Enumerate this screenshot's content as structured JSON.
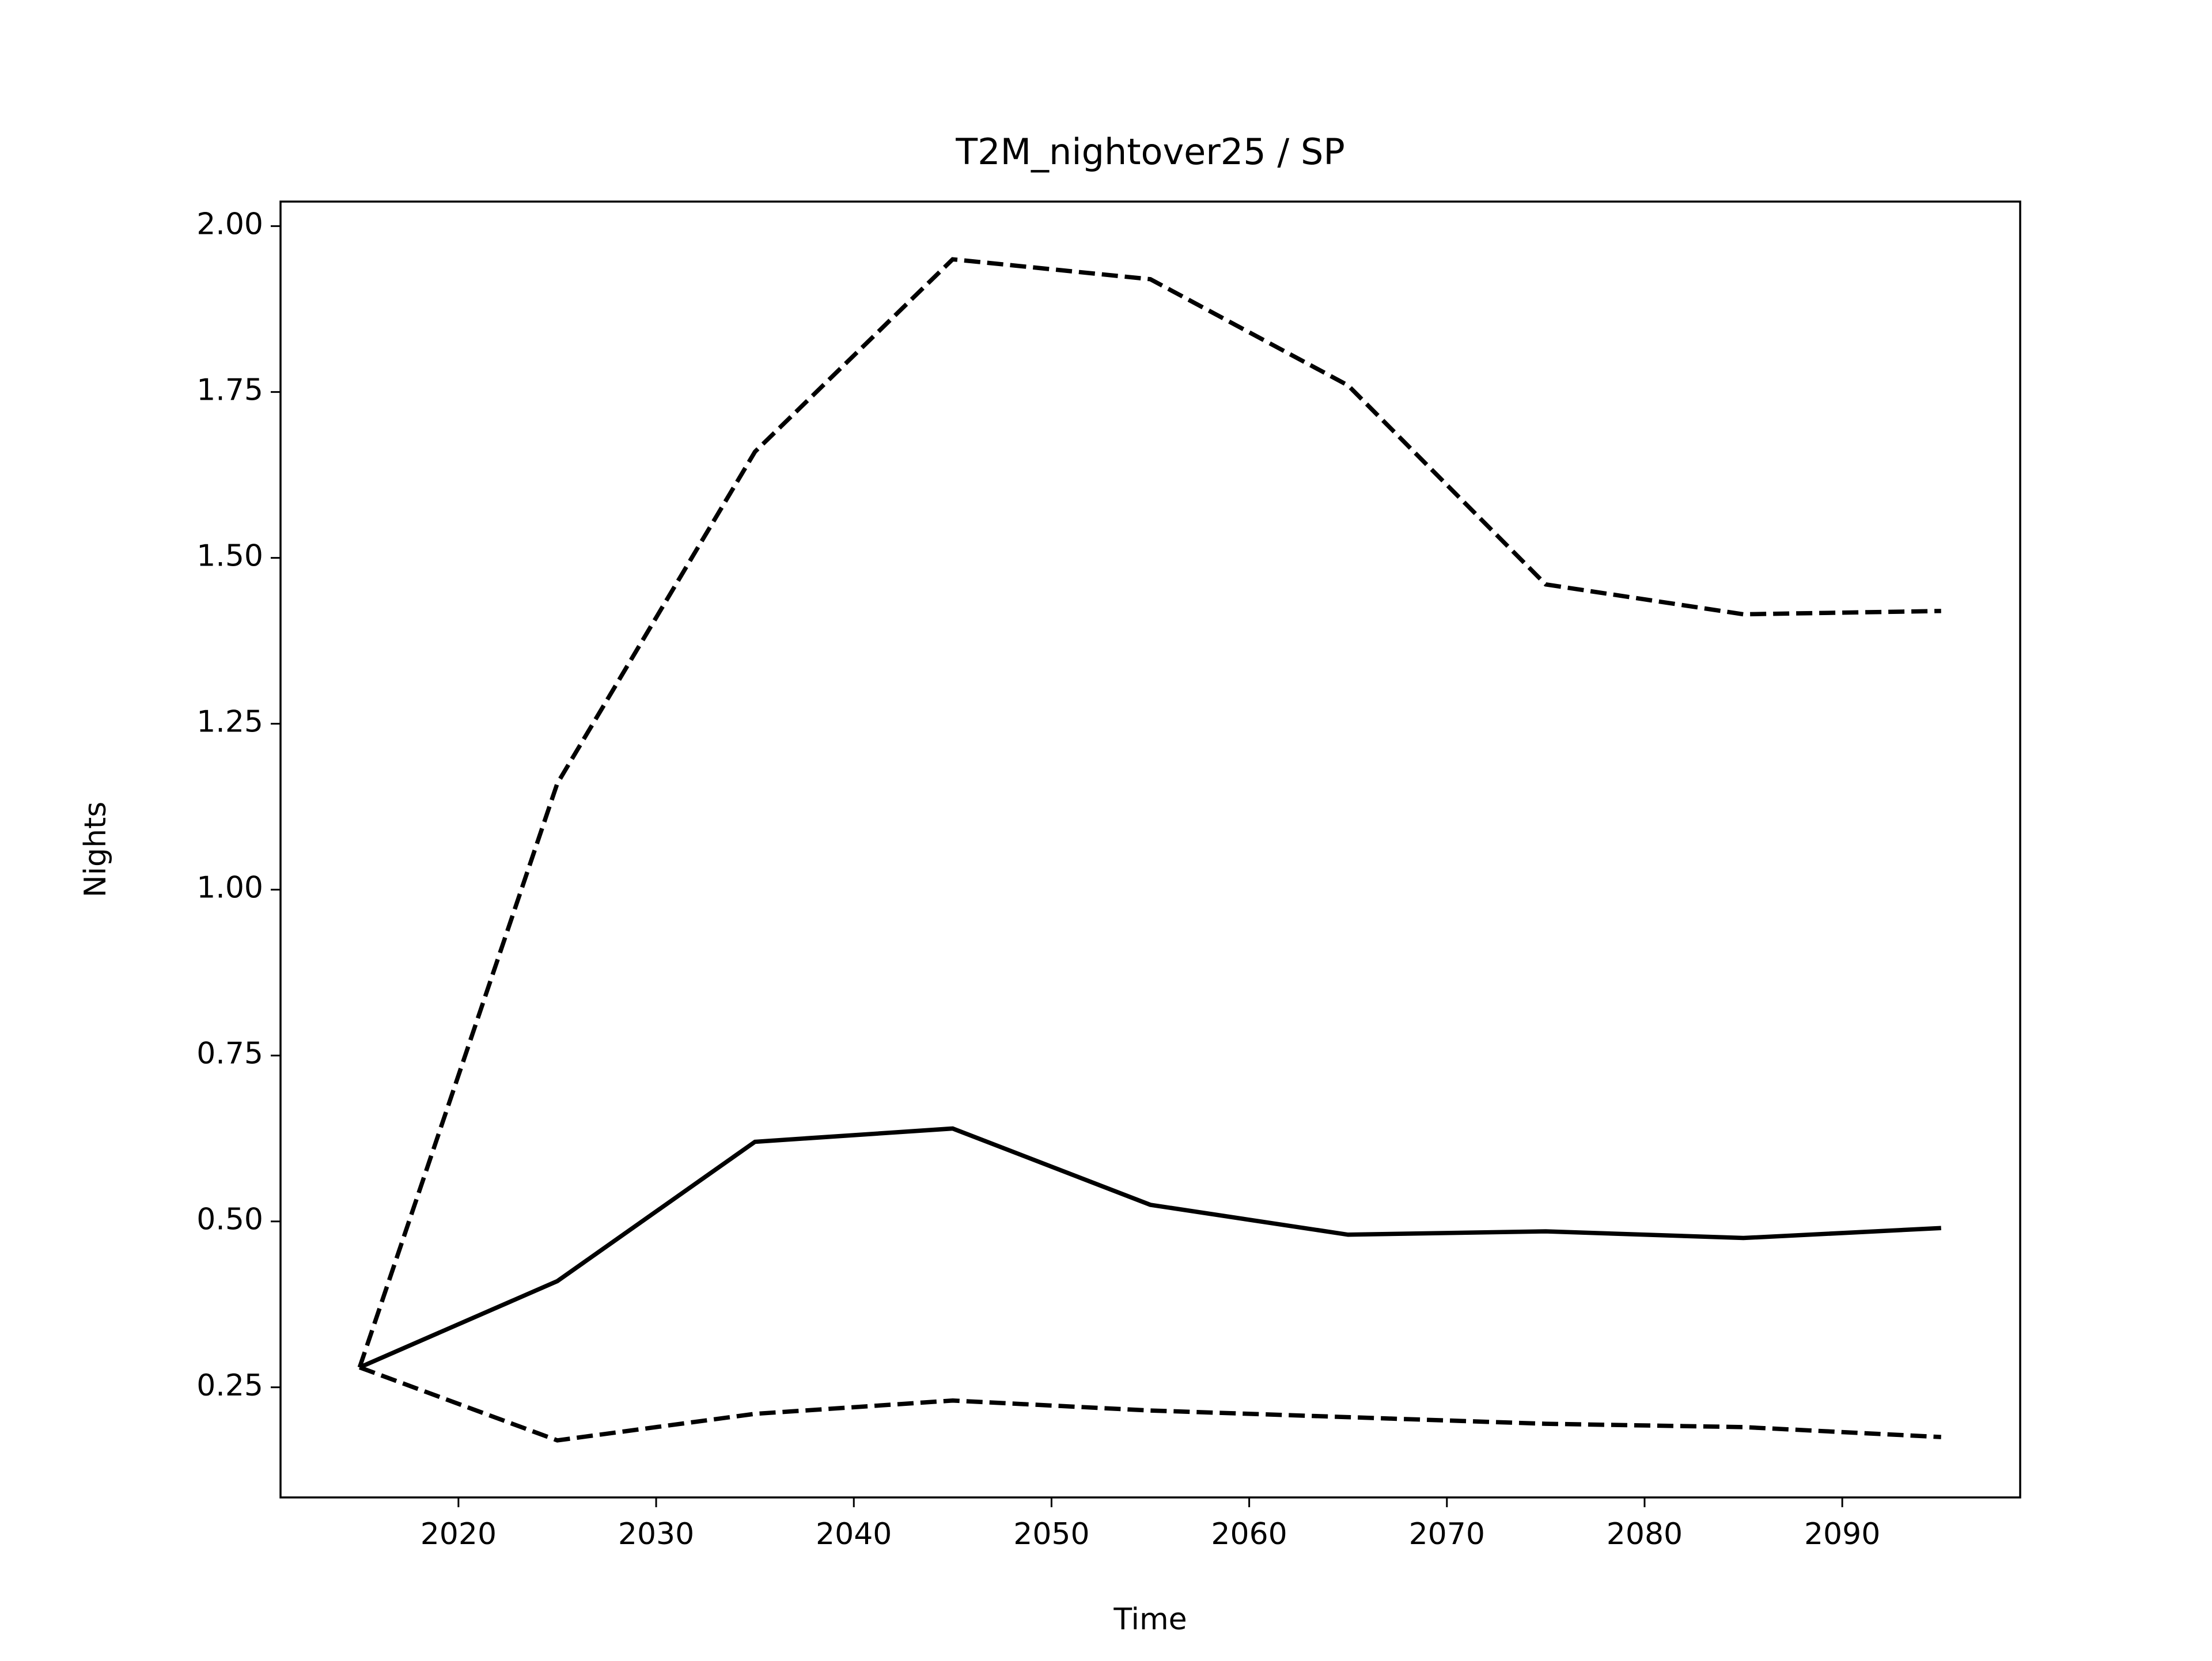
{
  "chart_data": {
    "type": "line",
    "title": "T2M_nightover25 / SP",
    "x_label": "Time",
    "y_label": "Nights",
    "x": [
      2015,
      2025,
      2035,
      2045,
      2055,
      2065,
      2075,
      2085,
      2095
    ],
    "series": [
      {
        "color": "#000000",
        "linestyle": "dashed",
        "values": [
          0.28,
          1.16,
          1.66,
          1.95,
          1.92,
          1.76,
          1.46,
          1.415,
          1.42
        ]
      },
      {
        "color": "#000000",
        "linestyle": "solid",
        "values": [
          0.28,
          0.41,
          0.62,
          0.64,
          0.525,
          0.48,
          0.485,
          0.475,
          0.49
        ]
      },
      {
        "color": "#000000",
        "linestyle": "dashed",
        "values": [
          0.28,
          0.17,
          0.21,
          0.23,
          0.215,
          0.205,
          0.195,
          0.19,
          0.175
        ]
      }
    ],
    "xlim": [
      2011,
      2099
    ],
    "xticks": [
      2020,
      2030,
      2040,
      2050,
      2060,
      2070,
      2080,
      2090
    ],
    "ylim": [
      0.084,
      2.037
    ],
    "yticks": [
      {
        "value": 0.25,
        "label": "0.25"
      },
      {
        "value": 0.5,
        "label": "0.50"
      },
      {
        "value": 0.75,
        "label": "0.75"
      },
      {
        "value": 1.0,
        "label": "1.00"
      },
      {
        "value": 1.25,
        "label": "1.25"
      },
      {
        "value": 1.5,
        "label": "1.50"
      },
      {
        "value": 1.75,
        "label": "1.75"
      },
      {
        "value": 2.0,
        "label": "2.00"
      }
    ],
    "grid": false
  }
}
